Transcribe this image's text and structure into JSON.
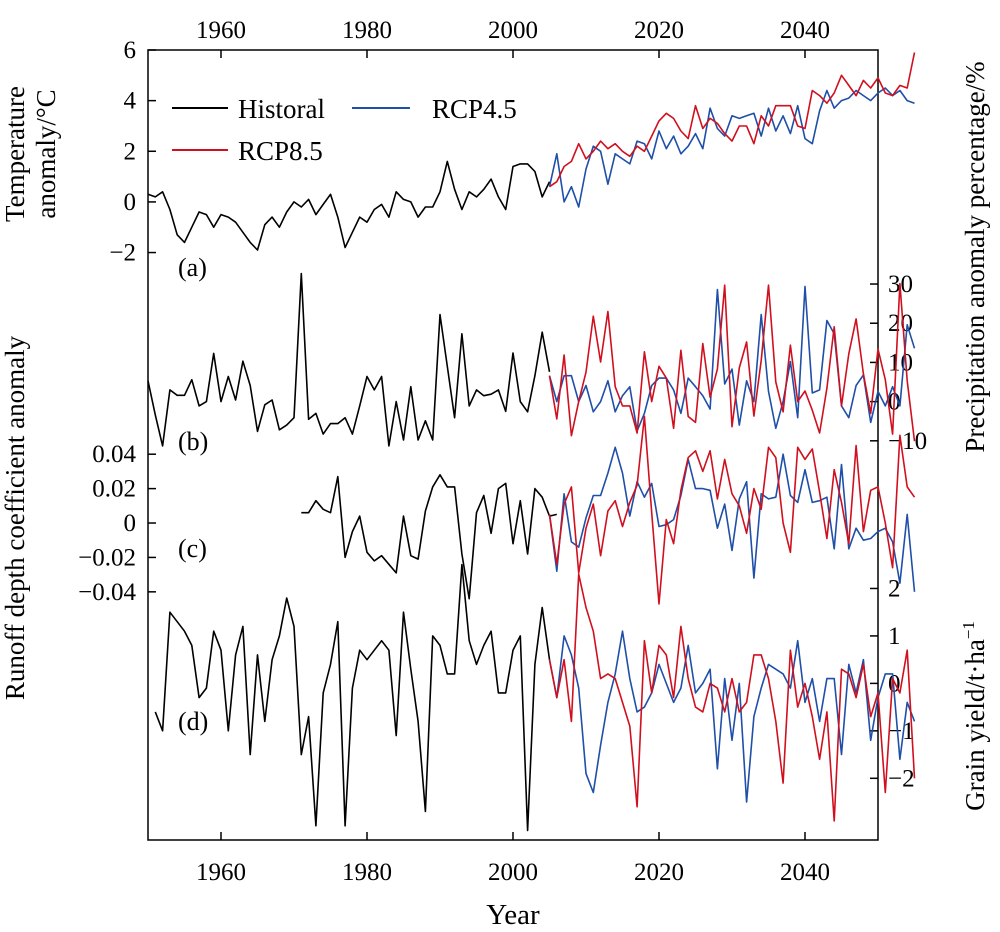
{
  "axes": {
    "x_top_ticks": [
      "1960",
      "1980",
      "2000",
      "2020",
      "2040"
    ],
    "x_bottom_ticks": [
      "1960",
      "1980",
      "2000",
      "2020",
      "2040"
    ],
    "xlabel": "Year",
    "left_label_a_line1": "Temperature",
    "left_label_a_line2": "anomaly/°C",
    "left_label_c": "Runoff depth coefficient anomaly",
    "right_label_b": "Precipitation anomaly percentage/%",
    "right_label_d_main": "Grain yield/t·ha",
    "right_label_d_sup": "−1"
  },
  "legend": {
    "historical": "Historal",
    "rcp45": "RCP4.5",
    "rcp85": "RCP8.5"
  },
  "colors": {
    "historical": "#000000",
    "rcp45": "#1f4fa8",
    "rcp85": "#d0101e"
  },
  "chart_data": [
    {
      "panel": "(a)",
      "type": "line",
      "ylabel": "Temperature anomaly/°C",
      "ylim": [
        -3.4,
        6.0
      ],
      "yticks": [
        -2,
        0,
        2,
        4,
        6
      ],
      "ytick_labels": [
        "−2",
        "0",
        "2",
        "4",
        "6"
      ],
      "series": [
        {
          "name": "Historal",
          "key": "historical",
          "x_start": 1950,
          "values": [
            0.3,
            0.2,
            0.4,
            -0.3,
            -1.3,
            -1.6,
            -1.0,
            -0.4,
            -0.5,
            -1.0,
            -0.5,
            -0.6,
            -0.8,
            -1.2,
            -1.6,
            -1.9,
            -0.9,
            -0.6,
            -1.0,
            -0.4,
            0.0,
            -0.2,
            0.1,
            -0.5,
            -0.1,
            0.3,
            -0.6,
            -1.8,
            -1.2,
            -0.6,
            -0.8,
            -0.3,
            -0.1,
            -0.6,
            0.4,
            0.1,
            0.0,
            -0.6,
            -0.2,
            -0.2,
            0.4,
            1.6,
            0.5,
            -0.3,
            0.4,
            0.2,
            0.5,
            0.9,
            0.2,
            -0.3,
            1.4,
            1.5,
            1.5,
            1.2,
            0.2,
            0.8
          ]
        },
        {
          "name": "RCP4.5",
          "key": "rcp45",
          "x_start": 2005,
          "values": [
            0.6,
            1.9,
            0.0,
            0.6,
            -0.2,
            1.3,
            2.2,
            2.0,
            0.7,
            1.9,
            1.7,
            1.5,
            2.4,
            2.3,
            1.7,
            2.8,
            2.1,
            2.6,
            1.9,
            2.2,
            2.7,
            2.1,
            3.7,
            2.9,
            2.6,
            3.4,
            3.3,
            3.4,
            3.5,
            2.6,
            3.7,
            2.8,
            3.4,
            2.7,
            3.8,
            2.5,
            2.3,
            3.6,
            4.4,
            3.7,
            4.0,
            4.1,
            4.4,
            4.2,
            4.0,
            4.3,
            4.5,
            4.2,
            4.4,
            4.0,
            3.9
          ]
        },
        {
          "name": "RCP8.5",
          "key": "rcp85",
          "x_start": 2005,
          "values": [
            0.6,
            0.8,
            1.4,
            1.6,
            2.3,
            1.7,
            2.0,
            2.4,
            2.1,
            2.3,
            2.0,
            1.8,
            2.2,
            2.0,
            2.6,
            3.2,
            3.5,
            3.3,
            2.8,
            2.5,
            3.8,
            2.9,
            3.3,
            3.1,
            2.7,
            2.4,
            3.0,
            3.0,
            2.3,
            3.4,
            3.0,
            3.8,
            3.8,
            3.8,
            3.0,
            2.9,
            4.4,
            4.2,
            3.9,
            4.3,
            5.0,
            4.6,
            4.2,
            4.8,
            4.5,
            4.9,
            4.3,
            4.2,
            4.6,
            4.5,
            5.9
          ]
        }
      ]
    },
    {
      "panel": "(b)",
      "type": "line",
      "ylabel": "Precipitation anomaly percentage/%",
      "ylim": [
        -32.5,
        42.0
      ],
      "yticks": [
        -10,
        0,
        10,
        20,
        30
      ],
      "ytick_labels": [
        "−10",
        "0",
        "10",
        "20",
        "30"
      ],
      "series": [
        {
          "name": "Historal",
          "key": "historical",
          "x_start": 1950,
          "values": [
            5.3,
            -3.4,
            -11.3,
            3.0,
            1.6,
            1.6,
            5.6,
            -1.1,
            0.0,
            12.3,
            0.0,
            6.4,
            0.4,
            10.3,
            4.1,
            -7.6,
            -0.8,
            0.4,
            -7.2,
            -6.0,
            -4.1,
            32.7,
            -4.5,
            -3.0,
            -8.3,
            -5.6,
            -5.6,
            -4.1,
            -8.3,
            -1.1,
            6.4,
            3.0,
            6.4,
            -11.3,
            0.0,
            -9.8,
            3.8,
            -9.8,
            -4.9,
            -9.8,
            22.2,
            9.0,
            -4.1,
            17.3,
            -1.1,
            3.0,
            1.5,
            1.9,
            3.0,
            -2.5,
            12.4,
            0.0,
            -2.6,
            6.6,
            17.7,
            7.6
          ]
        },
        {
          "name": "RCP4.5",
          "key": "rcp45",
          "x_start": 2005,
          "values": [
            6.6,
            0.0,
            6.6,
            6.6,
            0.0,
            4.1,
            -2.6,
            0.0,
            5.3,
            -2.6,
            1.5,
            3.8,
            -7.5,
            -3.0,
            4.1,
            6.0,
            6.0,
            3.0,
            -3.0,
            6.0,
            3.8,
            1.5,
            -1.9,
            28.6,
            4.5,
            8.3,
            -6.0,
            5.3,
            0.0,
            22.2,
            2.6,
            -6.8,
            0.0,
            10.2,
            -4.1,
            29.4,
            2.2,
            3.0,
            20.7,
            17.3,
            -1.1,
            -4.1,
            4.1,
            6.8,
            -5.3,
            2.6,
            -1.1,
            3.8,
            -1.1,
            19.6,
            13.6
          ]
        },
        {
          "name": "RCP8.5",
          "key": "rcp85",
          "x_start": 2005,
          "values": [
            6.6,
            -4.4,
            11.9,
            -8.7,
            0.0,
            7.5,
            21.8,
            10.1,
            23.0,
            3.8,
            -1.1,
            -1.1,
            -8.0,
            12.7,
            0.0,
            9.0,
            6.0,
            -6.8,
            13.1,
            -3.8,
            -5.3,
            14.8,
            1.1,
            8.3,
            29.7,
            -6.4,
            8.6,
            15.2,
            -3.7,
            10.5,
            29.7,
            5.0,
            -2.6,
            14.4,
            0.0,
            2.7,
            -2.2,
            -8.0,
            3.4,
            19.1,
            -1.1,
            12.2,
            21.1,
            7.1,
            -3.0,
            13.4,
            5.6,
            -8.3,
            30.1,
            5.3,
            -10.1
          ]
        }
      ]
    },
    {
      "panel": "(c)",
      "type": "line",
      "ylabel": "Runoff depth coefficient anomaly",
      "ylim": [
        -0.068,
        0.05
      ],
      "yticks": [
        -0.04,
        -0.02,
        0,
        0.02,
        0.04
      ],
      "ytick_labels": [
        "−0.04",
        "−0.02",
        "0",
        "0.02",
        "0.04"
      ],
      "series": [
        {
          "name": "Historal",
          "key": "historical",
          "x_start": 1971,
          "values": [
            0.006,
            0.006,
            0.013,
            0.008,
            0.006,
            0.027,
            -0.02,
            -0.005,
            0.004,
            -0.017,
            -0.022,
            -0.019,
            -0.024,
            -0.029,
            0.004,
            -0.019,
            -0.021,
            0.007,
            0.021,
            0.028,
            0.021,
            0.021,
            -0.018,
            -0.044,
            0.006,
            0.016,
            -0.006,
            0.02,
            0.023,
            -0.012,
            0.013,
            -0.018,
            0.02,
            0.015,
            0.004,
            0.005
          ]
        },
        {
          "name": "RCP4.5",
          "key": "rcp45",
          "x_start": 2005,
          "values": [
            0.005,
            -0.028,
            0.017,
            -0.011,
            -0.014,
            0.003,
            0.016,
            0.016,
            0.029,
            0.044,
            0.029,
            0.004,
            0.024,
            0.015,
            0.023,
            -0.002,
            -0.001,
            0.002,
            0.016,
            0.037,
            0.02,
            0.02,
            0.019,
            -0.003,
            0.011,
            -0.016,
            0.014,
            0.024,
            -0.032,
            0.017,
            0.014,
            0.015,
            0.04,
            0.016,
            0.012,
            0.031,
            0.012,
            0.013,
            0.015,
            -0.015,
            0.034,
            -0.015,
            -0.003,
            -0.01,
            -0.009,
            -0.005,
            -0.003,
            -0.011,
            -0.035,
            0.005,
            -0.04
          ]
        },
        {
          "name": "RCP8.5",
          "key": "rcp85",
          "x_start": 2005,
          "values": [
            0.005,
            -0.024,
            0.011,
            0.021,
            -0.029,
            -0.003,
            0.011,
            -0.019,
            0.007,
            0.013,
            -0.002,
            0.012,
            0.022,
            0.062,
            0.006,
            -0.047,
            0.002,
            -0.012,
            0.019,
            0.038,
            0.042,
            0.03,
            0.042,
            0.014,
            0.037,
            0.017,
            0.01,
            -0.006,
            0.02,
            0.008,
            0.044,
            0.038,
            0.0,
            -0.017,
            0.044,
            0.037,
            0.043,
            0.018,
            -0.009,
            0.031,
            0.012,
            -0.012,
            0.045,
            -0.005,
            0.019,
            0.021,
            0.0,
            -0.026,
            0.051,
            0.021,
            0.015
          ]
        }
      ]
    },
    {
      "panel": "(d)",
      "type": "line",
      "ylabel": "Grain yield/t·ha−1",
      "ylim": [
        -3.3,
        2.6
      ],
      "yticks": [
        -2,
        -1,
        0,
        1,
        2
      ],
      "ytick_labels": [
        "−2",
        "−1",
        "0",
        "1",
        "2"
      ],
      "series": [
        {
          "name": "Historal",
          "key": "historical",
          "x_start": 1951,
          "values": [
            -0.6,
            -1.0,
            1.5,
            1.3,
            1.1,
            0.8,
            -0.3,
            -0.1,
            1.1,
            0.7,
            -1.0,
            0.6,
            1.2,
            -1.5,
            0.6,
            -0.8,
            0.5,
            1.0,
            1.8,
            1.2,
            -1.5,
            -0.7,
            -3.0,
            -0.2,
            0.4,
            1.3,
            -3.0,
            -0.1,
            0.7,
            0.5,
            0.7,
            0.9,
            0.7,
            -1.1,
            1.5,
            0.3,
            -0.8,
            -2.7,
            1.0,
            0.8,
            0.2,
            0.2,
            2.5,
            0.9,
            0.4,
            0.8,
            1.1,
            -0.2,
            -0.2,
            0.7,
            1.0,
            -3.1,
            0.4,
            1.6,
            0.5
          ]
        },
        {
          "name": "RCP4.5",
          "key": "rcp45",
          "x_start": 2005,
          "values": [
            0.5,
            -0.3,
            1.0,
            0.6,
            -0.1,
            -1.9,
            -2.3,
            -1.3,
            -0.4,
            0.2,
            1.1,
            0.1,
            -0.6,
            -0.5,
            -0.2,
            0.4,
            0.0,
            -0.4,
            -0.1,
            0.8,
            -0.2,
            0.0,
            0.3,
            -1.8,
            0.1,
            -1.2,
            0.0,
            -2.5,
            -0.7,
            -0.1,
            0.4,
            0.3,
            0.2,
            -0.1,
            0.9,
            -0.4,
            0.1,
            -0.8,
            0.1,
            0.1,
            -1.5,
            0.4,
            -0.2,
            0.5,
            -1.2,
            -0.3,
            0.2,
            0.2,
            -1.6,
            -0.4,
            -0.8
          ]
        },
        {
          "name": "RCP8.5",
          "key": "rcp85",
          "x_start": 2005,
          "values": [
            0.5,
            -0.3,
            0.5,
            -0.8,
            2.3,
            1.6,
            1.1,
            0.1,
            0.2,
            0.1,
            -0.4,
            -0.9,
            -2.6,
            0.9,
            -0.2,
            0.8,
            0.6,
            -0.3,
            1.2,
            0.1,
            -0.5,
            -0.6,
            0.0,
            -0.1,
            -0.6,
            0.1,
            -0.6,
            -0.4,
            0.6,
            0.6,
            0.1,
            -0.8,
            -2.1,
            0.7,
            -0.5,
            0.0,
            -0.7,
            -1.6,
            -0.6,
            -2.9,
            0.3,
            0.2,
            -0.3,
            0.4,
            -0.7,
            -0.2,
            -2.3,
            0.1,
            -0.2,
            0.7,
            -2.0
          ]
        }
      ]
    }
  ]
}
